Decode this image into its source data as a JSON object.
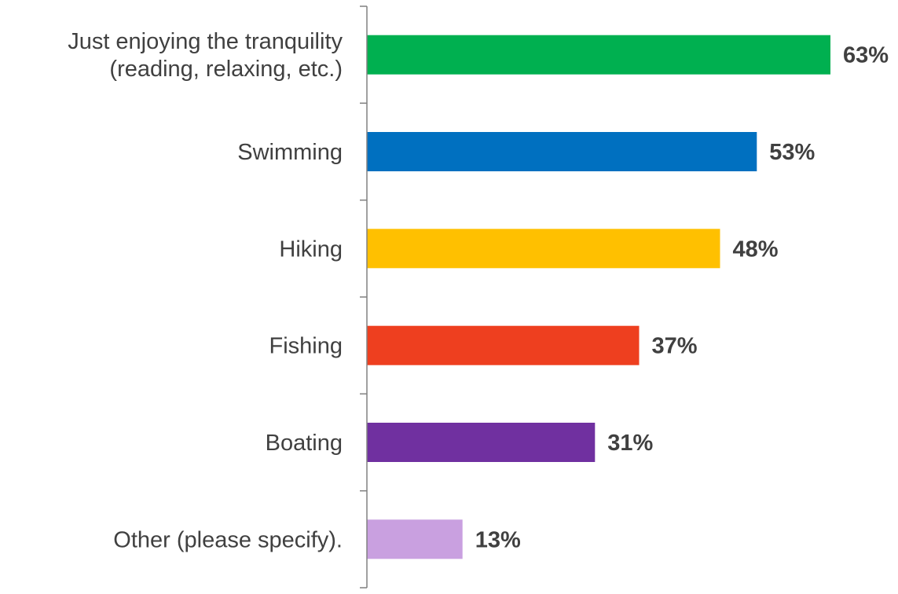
{
  "chart_data": {
    "type": "bar",
    "orientation": "horizontal",
    "categories": [
      [
        "Just enjoying the tranquility",
        "(reading, relaxing, etc.)"
      ],
      [
        "Swimming"
      ],
      [
        "Hiking"
      ],
      [
        "Fishing"
      ],
      [
        "Boating"
      ],
      [
        "Other (please specify)."
      ]
    ],
    "values": [
      63,
      53,
      48,
      37,
      31,
      13
    ],
    "value_labels": [
      "63%",
      "53%",
      "48%",
      "37%",
      "31%",
      "13%"
    ],
    "colors": [
      "#00b050",
      "#0070c0",
      "#ffc000",
      "#ee3f1f",
      "#7030a0",
      "#c9a0e0"
    ],
    "title": "",
    "xlabel": "",
    "ylabel": "",
    "xlim": [
      0,
      70
    ],
    "unit": "%",
    "grid": false,
    "legend": "none",
    "value_labels_shown": true
  }
}
